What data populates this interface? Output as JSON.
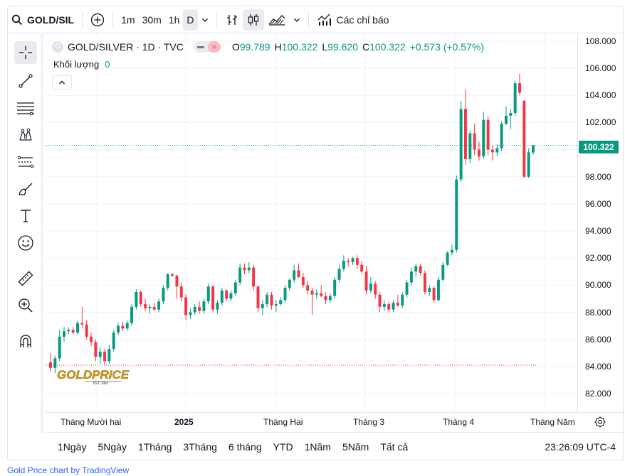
{
  "toolbar": {
    "symbol": "GOLD/SIL",
    "intervals": [
      "1m",
      "30m",
      "1h",
      "D"
    ],
    "indicators_label": "Các chỉ báo"
  },
  "legend": {
    "title": "GOLD/SILVER · 1D · TVC",
    "open_label": "O",
    "open": "99.789",
    "high_label": "H",
    "high": "100.322",
    "low_label": "L",
    "low": "99.620",
    "close_label": "C",
    "close": "100.322",
    "change": "+0.573 (+0.57%)"
  },
  "volume": {
    "label": "Khối lượng",
    "value": "0"
  },
  "price_axis": {
    "labels": [
      "108.000",
      "106.000",
      "104.000",
      "102.000",
      "100.000",
      "98.000",
      "96.000",
      "94.000",
      "92.000",
      "90.000",
      "88.000",
      "86.000",
      "84.000",
      "82.000"
    ],
    "last_price": "100.322"
  },
  "time_axis": {
    "labels": [
      "Tháng Mười hai",
      "2025",
      "Tháng Hai",
      "Tháng 3",
      "Tháng 4",
      "Tháng Năm"
    ]
  },
  "ranges": [
    "1Ngày",
    "5Ngày",
    "1Tháng",
    "3Tháng",
    "6 tháng",
    "YTD",
    "1Năm",
    "5Năm",
    "Tất cả"
  ],
  "clock": "23:26:09 UTC-4",
  "watermark": {
    "text": "GOLDPRICE",
    "sub": "EST. 2002"
  },
  "credit": "Gold Price chart by TradingView",
  "colors": {
    "up": "#089981",
    "down": "#f23645",
    "accent": "#2962ff"
  },
  "chart_data": {
    "type": "candlestick",
    "ylim": [
      81,
      109
    ],
    "series": [
      {
        "o": 84.3,
        "h": 85.0,
        "l": 83.6,
        "c": 83.9
      },
      {
        "o": 83.9,
        "h": 84.8,
        "l": 83.5,
        "c": 84.6
      },
      {
        "o": 84.6,
        "h": 86.7,
        "l": 84.4,
        "c": 86.2
      },
      {
        "o": 86.2,
        "h": 86.9,
        "l": 85.8,
        "c": 86.6
      },
      {
        "o": 86.6,
        "h": 86.9,
        "l": 86.4,
        "c": 86.7
      },
      {
        "o": 86.7,
        "h": 86.9,
        "l": 86.4,
        "c": 86.5
      },
      {
        "o": 86.5,
        "h": 87.4,
        "l": 86.3,
        "c": 87.2
      },
      {
        "o": 87.2,
        "h": 88.4,
        "l": 86.8,
        "c": 87.1
      },
      {
        "o": 87.1,
        "h": 87.4,
        "l": 86.0,
        "c": 86.2
      },
      {
        "o": 86.2,
        "h": 86.5,
        "l": 85.5,
        "c": 85.8
      },
      {
        "o": 85.8,
        "h": 86.0,
        "l": 84.4,
        "c": 84.7
      },
      {
        "o": 84.7,
        "h": 85.4,
        "l": 84.2,
        "c": 85.1
      },
      {
        "o": 85.1,
        "h": 85.3,
        "l": 84.1,
        "c": 84.4
      },
      {
        "o": 84.4,
        "h": 85.6,
        "l": 84.2,
        "c": 85.3
      },
      {
        "o": 85.3,
        "h": 86.7,
        "l": 85.1,
        "c": 86.5
      },
      {
        "o": 86.5,
        "h": 87.2,
        "l": 86.3,
        "c": 87.0
      },
      {
        "o": 87.0,
        "h": 87.3,
        "l": 86.6,
        "c": 86.8
      },
      {
        "o": 86.8,
        "h": 87.4,
        "l": 86.6,
        "c": 87.2
      },
      {
        "o": 87.2,
        "h": 88.6,
        "l": 87.0,
        "c": 88.4
      },
      {
        "o": 88.4,
        "h": 89.7,
        "l": 88.2,
        "c": 89.5
      },
      {
        "o": 89.5,
        "h": 89.6,
        "l": 88.4,
        "c": 88.6
      },
      {
        "o": 88.6,
        "h": 89.0,
        "l": 88.1,
        "c": 88.3
      },
      {
        "o": 88.3,
        "h": 88.6,
        "l": 87.9,
        "c": 88.4
      },
      {
        "o": 88.4,
        "h": 88.7,
        "l": 88.1,
        "c": 88.2
      },
      {
        "o": 88.2,
        "h": 89.0,
        "l": 88.0,
        "c": 88.8
      },
      {
        "o": 88.8,
        "h": 90.0,
        "l": 88.6,
        "c": 89.8
      },
      {
        "o": 89.8,
        "h": 90.9,
        "l": 89.6,
        "c": 90.8
      },
      {
        "o": 90.8,
        "h": 90.9,
        "l": 90.6,
        "c": 90.7
      },
      {
        "o": 90.7,
        "h": 90.8,
        "l": 89.0,
        "c": 89.9
      },
      {
        "o": 89.9,
        "h": 90.2,
        "l": 88.8,
        "c": 89.1
      },
      {
        "o": 89.1,
        "h": 89.3,
        "l": 87.4,
        "c": 87.8
      },
      {
        "o": 87.8,
        "h": 88.3,
        "l": 87.5,
        "c": 88.0
      },
      {
        "o": 88.0,
        "h": 88.6,
        "l": 87.8,
        "c": 88.4
      },
      {
        "o": 88.4,
        "h": 88.8,
        "l": 87.9,
        "c": 88.1
      },
      {
        "o": 88.1,
        "h": 89.0,
        "l": 87.9,
        "c": 88.8
      },
      {
        "o": 88.8,
        "h": 90.1,
        "l": 88.6,
        "c": 89.9
      },
      {
        "o": 89.9,
        "h": 90.0,
        "l": 88.0,
        "c": 88.2
      },
      {
        "o": 88.2,
        "h": 88.9,
        "l": 87.9,
        "c": 88.7
      },
      {
        "o": 88.7,
        "h": 89.8,
        "l": 88.5,
        "c": 89.6
      },
      {
        "o": 89.6,
        "h": 89.7,
        "l": 88.8,
        "c": 89.0
      },
      {
        "o": 89.0,
        "h": 89.6,
        "l": 88.8,
        "c": 89.4
      },
      {
        "o": 89.4,
        "h": 90.4,
        "l": 89.2,
        "c": 90.2
      },
      {
        "o": 90.2,
        "h": 91.6,
        "l": 90.0,
        "c": 91.3
      },
      {
        "o": 91.3,
        "h": 91.6,
        "l": 90.8,
        "c": 91.1
      },
      {
        "o": 91.1,
        "h": 91.7,
        "l": 90.9,
        "c": 91.3
      },
      {
        "o": 91.3,
        "h": 91.5,
        "l": 89.6,
        "c": 89.9
      },
      {
        "o": 89.9,
        "h": 90.0,
        "l": 88.0,
        "c": 88.3
      },
      {
        "o": 88.3,
        "h": 88.9,
        "l": 87.8,
        "c": 88.6
      },
      {
        "o": 88.6,
        "h": 89.5,
        "l": 88.4,
        "c": 89.3
      },
      {
        "o": 89.3,
        "h": 89.5,
        "l": 88.2,
        "c": 88.5
      },
      {
        "o": 88.5,
        "h": 88.9,
        "l": 88.0,
        "c": 88.6
      },
      {
        "o": 88.6,
        "h": 89.1,
        "l": 88.5,
        "c": 88.9
      },
      {
        "o": 88.9,
        "h": 90.0,
        "l": 88.7,
        "c": 89.8
      },
      {
        "o": 89.8,
        "h": 90.5,
        "l": 89.6,
        "c": 90.4
      },
      {
        "o": 90.4,
        "h": 91.5,
        "l": 90.2,
        "c": 91.1
      },
      {
        "o": 91.1,
        "h": 91.6,
        "l": 90.5,
        "c": 90.6
      },
      {
        "o": 90.6,
        "h": 90.9,
        "l": 89.8,
        "c": 90.0
      },
      {
        "o": 90.0,
        "h": 90.3,
        "l": 89.3,
        "c": 89.6
      },
      {
        "o": 89.6,
        "h": 89.8,
        "l": 87.8,
        "c": 89.3
      },
      {
        "o": 89.3,
        "h": 89.7,
        "l": 89.0,
        "c": 89.4
      },
      {
        "o": 89.4,
        "h": 90.0,
        "l": 89.1,
        "c": 89.2
      },
      {
        "o": 89.2,
        "h": 89.5,
        "l": 88.6,
        "c": 88.9
      },
      {
        "o": 88.9,
        "h": 89.4,
        "l": 88.7,
        "c": 89.2
      },
      {
        "o": 89.2,
        "h": 90.6,
        "l": 89.0,
        "c": 90.4
      },
      {
        "o": 90.4,
        "h": 91.5,
        "l": 90.2,
        "c": 91.2
      },
      {
        "o": 91.2,
        "h": 92.2,
        "l": 91.0,
        "c": 91.8
      },
      {
        "o": 91.8,
        "h": 92.0,
        "l": 91.4,
        "c": 91.7
      },
      {
        "o": 91.7,
        "h": 92.1,
        "l": 91.5,
        "c": 92.0
      },
      {
        "o": 92.0,
        "h": 92.2,
        "l": 91.2,
        "c": 91.5
      },
      {
        "o": 91.5,
        "h": 91.8,
        "l": 90.8,
        "c": 91.0
      },
      {
        "o": 91.0,
        "h": 91.4,
        "l": 89.3,
        "c": 89.6
      },
      {
        "o": 89.6,
        "h": 90.6,
        "l": 89.4,
        "c": 90.1
      },
      {
        "o": 90.1,
        "h": 90.3,
        "l": 89.0,
        "c": 89.3
      },
      {
        "o": 89.3,
        "h": 89.5,
        "l": 88.0,
        "c": 88.4
      },
      {
        "o": 88.4,
        "h": 88.9,
        "l": 88.1,
        "c": 88.6
      },
      {
        "o": 88.6,
        "h": 88.8,
        "l": 88.0,
        "c": 88.2
      },
      {
        "o": 88.2,
        "h": 88.9,
        "l": 88.0,
        "c": 88.7
      },
      {
        "o": 88.7,
        "h": 89.3,
        "l": 88.4,
        "c": 88.5
      },
      {
        "o": 88.5,
        "h": 89.5,
        "l": 88.3,
        "c": 89.3
      },
      {
        "o": 89.3,
        "h": 90.4,
        "l": 89.1,
        "c": 90.2
      },
      {
        "o": 90.2,
        "h": 91.3,
        "l": 90.0,
        "c": 91.0
      },
      {
        "o": 91.0,
        "h": 91.6,
        "l": 90.6,
        "c": 91.4
      },
      {
        "o": 91.4,
        "h": 91.6,
        "l": 90.7,
        "c": 90.9
      },
      {
        "o": 90.9,
        "h": 91.1,
        "l": 89.3,
        "c": 89.5
      },
      {
        "o": 89.5,
        "h": 90.0,
        "l": 89.2,
        "c": 89.8
      },
      {
        "o": 89.8,
        "h": 89.9,
        "l": 88.7,
        "c": 88.9
      },
      {
        "o": 88.9,
        "h": 90.6,
        "l": 88.8,
        "c": 90.4
      },
      {
        "o": 90.4,
        "h": 91.7,
        "l": 90.3,
        "c": 91.5
      },
      {
        "o": 91.5,
        "h": 92.5,
        "l": 91.4,
        "c": 92.4
      },
      {
        "o": 92.4,
        "h": 93.0,
        "l": 92.2,
        "c": 92.6
      },
      {
        "o": 92.6,
        "h": 98.1,
        "l": 92.4,
        "c": 97.8
      },
      {
        "o": 97.8,
        "h": 103.6,
        "l": 97.6,
        "c": 103.0
      },
      {
        "o": 103.0,
        "h": 104.4,
        "l": 98.9,
        "c": 99.3
      },
      {
        "o": 99.3,
        "h": 101.4,
        "l": 99.0,
        "c": 101.2
      },
      {
        "o": 101.2,
        "h": 101.9,
        "l": 99.6,
        "c": 100.0
      },
      {
        "o": 100.0,
        "h": 100.6,
        "l": 99.2,
        "c": 99.5
      },
      {
        "o": 99.5,
        "h": 102.8,
        "l": 99.3,
        "c": 102.2
      },
      {
        "o": 102.2,
        "h": 102.5,
        "l": 99.6,
        "c": 100.0
      },
      {
        "o": 100.0,
        "h": 100.3,
        "l": 99.2,
        "c": 99.8
      },
      {
        "o": 99.8,
        "h": 100.4,
        "l": 99.5,
        "c": 100.1
      },
      {
        "o": 100.1,
        "h": 102.1,
        "l": 99.9,
        "c": 101.9
      },
      {
        "o": 101.9,
        "h": 103.2,
        "l": 101.8,
        "c": 102.5
      },
      {
        "o": 102.5,
        "h": 103.0,
        "l": 101.5,
        "c": 102.7
      },
      {
        "o": 102.7,
        "h": 105.1,
        "l": 102.5,
        "c": 104.9
      },
      {
        "o": 104.9,
        "h": 105.6,
        "l": 104.0,
        "c": 104.2
      },
      {
        "o": 103.6,
        "h": 103.7,
        "l": 97.9,
        "c": 98.0
      },
      {
        "o": 98.0,
        "h": 100.1,
        "l": 97.9,
        "c": 99.8
      },
      {
        "o": 99.789,
        "h": 100.322,
        "l": 99.62,
        "c": 100.322
      }
    ],
    "reference_line": 84.1,
    "last_price": 100.322
  }
}
